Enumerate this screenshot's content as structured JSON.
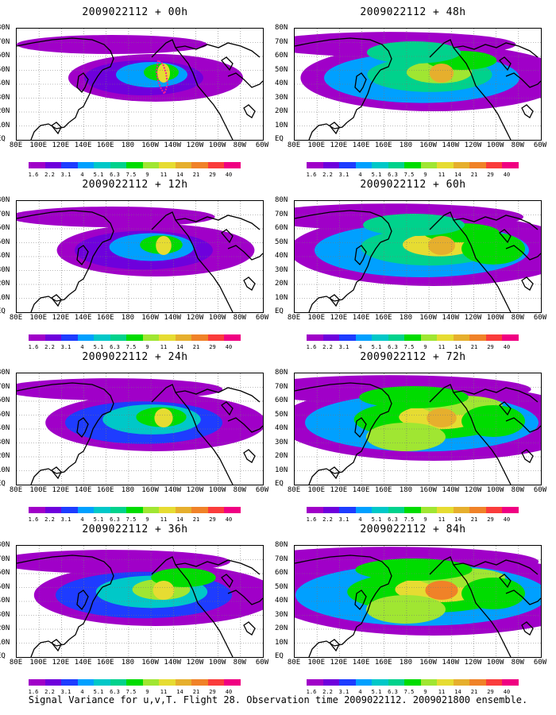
{
  "caption": "Signal Variance for u,v,T. Flight 28. Observation time 2009022112. 2009021800 ensemble.",
  "panels": [
    {
      "title": "2009022112 + 00h",
      "lead": 0
    },
    {
      "title": "2009022112 + 48h",
      "lead": 48
    },
    {
      "title": "2009022112 + 12h",
      "lead": 12
    },
    {
      "title": "2009022112 + 60h",
      "lead": 60
    },
    {
      "title": "2009022112 + 24h",
      "lead": 24
    },
    {
      "title": "2009022112 + 72h",
      "lead": 72
    },
    {
      "title": "2009022112 + 36h",
      "lead": 36
    },
    {
      "title": "2009022112 + 84h",
      "lead": 84
    }
  ],
  "lat_labels": [
    "80N",
    "70N",
    "60N",
    "50N",
    "40N",
    "30N",
    "20N",
    "10N",
    "EQ"
  ],
  "lon_labels": [
    "80E",
    "100E",
    "120E",
    "140E",
    "160E",
    "180",
    "160W",
    "140W",
    "120W",
    "100W",
    "80W",
    "60W"
  ],
  "colorbar": {
    "labels": [
      "1.6",
      "2.2",
      "3.1",
      "4",
      "5.1",
      "6.3",
      "7.5",
      "9",
      "11",
      "14",
      "21",
      "29",
      "40"
    ],
    "colors": [
      "#a000c8",
      "#6e00dc",
      "#1e3cff",
      "#00a0ff",
      "#00c8c8",
      "#00d28c",
      "#00dc00",
      "#a0e632",
      "#e6dc32",
      "#e6af2d",
      "#f08228",
      "#fa3c3c",
      "#f00082"
    ]
  },
  "flight_track_color": "#ff1e8c"
}
